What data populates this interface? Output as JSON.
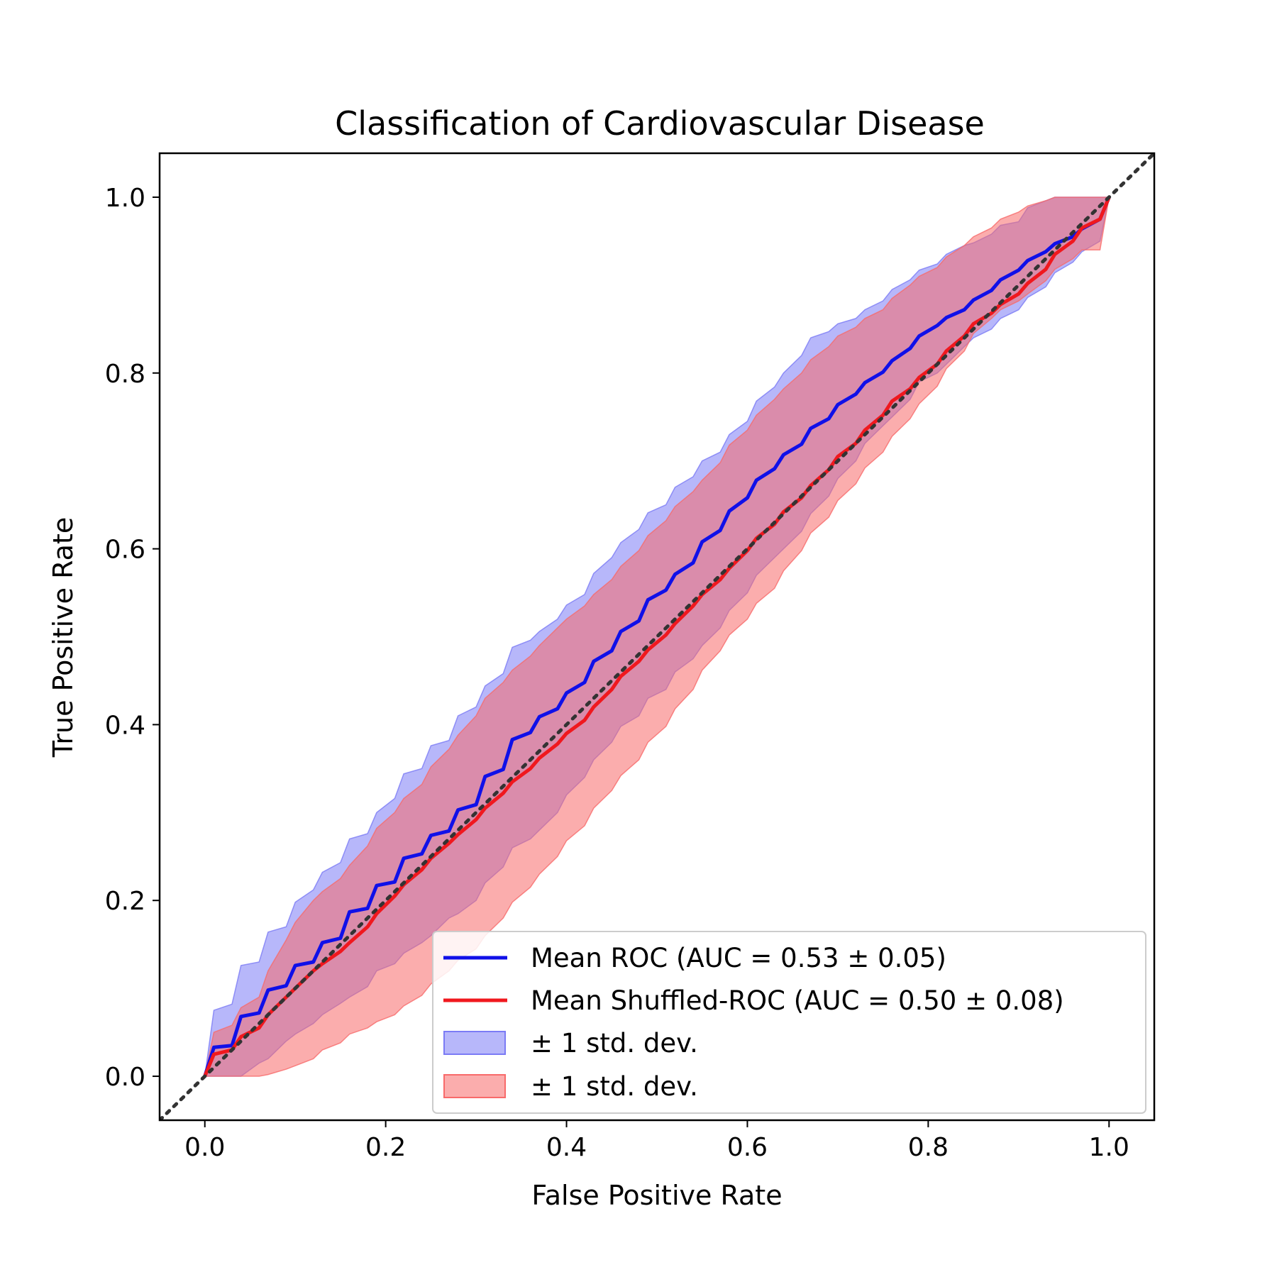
{
  "chart_data": {
    "type": "line",
    "title": "Classification of Cardiovascular Disease",
    "xlabel": "False Positive Rate",
    "ylabel": "True Positive Rate",
    "xlim": [
      -0.05,
      1.05
    ],
    "ylim": [
      -0.05,
      1.05
    ],
    "xticks": [
      "0.0",
      "0.2",
      "0.4",
      "0.6",
      "0.8",
      "1.0"
    ],
    "yticks": [
      "0.0",
      "0.2",
      "0.4",
      "0.6",
      "0.8",
      "1.0"
    ],
    "grid": false,
    "legend_position": "lower-right",
    "series": [
      {
        "name": "Mean ROC (AUC = 0.53 ± 0.05)",
        "color": "#1010e8",
        "x": [
          0.0,
          0.01,
          0.03,
          0.04,
          0.06,
          0.07,
          0.09,
          0.1,
          0.12,
          0.13,
          0.15,
          0.16,
          0.18,
          0.19,
          0.21,
          0.22,
          0.24,
          0.25,
          0.27,
          0.28,
          0.3,
          0.31,
          0.33,
          0.34,
          0.36,
          0.37,
          0.39,
          0.4,
          0.42,
          0.43,
          0.45,
          0.46,
          0.48,
          0.49,
          0.51,
          0.52,
          0.54,
          0.55,
          0.57,
          0.58,
          0.6,
          0.61,
          0.63,
          0.64,
          0.66,
          0.67,
          0.69,
          0.7,
          0.72,
          0.73,
          0.75,
          0.76,
          0.78,
          0.79,
          0.81,
          0.82,
          0.84,
          0.85,
          0.87,
          0.88,
          0.9,
          0.91,
          0.93,
          0.94,
          0.96,
          0.97,
          0.99,
          1.0
        ],
        "y": [
          0.0,
          0.033,
          0.035,
          0.068,
          0.072,
          0.098,
          0.103,
          0.126,
          0.13,
          0.152,
          0.157,
          0.187,
          0.191,
          0.217,
          0.221,
          0.248,
          0.253,
          0.274,
          0.279,
          0.303,
          0.309,
          0.341,
          0.349,
          0.383,
          0.391,
          0.409,
          0.418,
          0.436,
          0.448,
          0.472,
          0.484,
          0.506,
          0.518,
          0.542,
          0.553,
          0.571,
          0.584,
          0.608,
          0.621,
          0.643,
          0.658,
          0.678,
          0.691,
          0.707,
          0.719,
          0.737,
          0.748,
          0.764,
          0.776,
          0.789,
          0.801,
          0.814,
          0.828,
          0.842,
          0.854,
          0.863,
          0.872,
          0.883,
          0.894,
          0.906,
          0.917,
          0.928,
          0.938,
          0.947,
          0.955,
          0.964,
          0.975,
          1.0
        ],
        "band_label": "± 1 std. dev.",
        "band_color": "#7b7bf5",
        "y_upper": [
          0.0,
          0.075,
          0.082,
          0.126,
          0.13,
          0.164,
          0.17,
          0.198,
          0.212,
          0.232,
          0.243,
          0.27,
          0.276,
          0.3,
          0.316,
          0.344,
          0.35,
          0.376,
          0.382,
          0.41,
          0.42,
          0.444,
          0.458,
          0.488,
          0.496,
          0.506,
          0.52,
          0.536,
          0.548,
          0.572,
          0.59,
          0.607,
          0.622,
          0.641,
          0.65,
          0.67,
          0.682,
          0.7,
          0.71,
          0.73,
          0.745,
          0.768,
          0.784,
          0.8,
          0.82,
          0.84,
          0.847,
          0.856,
          0.862,
          0.872,
          0.882,
          0.895,
          0.906,
          0.917,
          0.924,
          0.935,
          0.945,
          0.948,
          0.958,
          0.968,
          0.972,
          0.988,
          0.996,
          1.0,
          1.0,
          1.0,
          1.0,
          1.0
        ],
        "y_lower": [
          0.0,
          0.0,
          0.0,
          0.0,
          0.015,
          0.02,
          0.04,
          0.048,
          0.06,
          0.07,
          0.083,
          0.09,
          0.102,
          0.12,
          0.128,
          0.14,
          0.152,
          0.16,
          0.18,
          0.185,
          0.2,
          0.22,
          0.238,
          0.26,
          0.27,
          0.28,
          0.3,
          0.32,
          0.34,
          0.36,
          0.38,
          0.398,
          0.41,
          0.43,
          0.44,
          0.46,
          0.475,
          0.49,
          0.51,
          0.53,
          0.55,
          0.57,
          0.59,
          0.6,
          0.62,
          0.64,
          0.66,
          0.68,
          0.7,
          0.72,
          0.74,
          0.75,
          0.77,
          0.79,
          0.8,
          0.81,
          0.83,
          0.84,
          0.85,
          0.862,
          0.872,
          0.886,
          0.898,
          0.914,
          0.926,
          0.938,
          0.95,
          1.0
        ]
      },
      {
        "name": "Mean Shuffled-ROC (AUC = 0.50 ± 0.08)",
        "color": "#f0181e",
        "x": [
          0.0,
          0.01,
          0.03,
          0.04,
          0.06,
          0.07,
          0.09,
          0.1,
          0.12,
          0.13,
          0.15,
          0.16,
          0.18,
          0.19,
          0.21,
          0.22,
          0.24,
          0.25,
          0.27,
          0.28,
          0.3,
          0.31,
          0.33,
          0.34,
          0.36,
          0.37,
          0.39,
          0.4,
          0.42,
          0.43,
          0.45,
          0.46,
          0.48,
          0.49,
          0.51,
          0.52,
          0.54,
          0.55,
          0.57,
          0.58,
          0.6,
          0.61,
          0.63,
          0.64,
          0.66,
          0.67,
          0.69,
          0.7,
          0.72,
          0.73,
          0.75,
          0.76,
          0.78,
          0.79,
          0.81,
          0.82,
          0.84,
          0.85,
          0.87,
          0.88,
          0.9,
          0.91,
          0.93,
          0.94,
          0.96,
          0.97,
          0.99,
          1.0
        ],
        "y": [
          0.0,
          0.025,
          0.03,
          0.045,
          0.055,
          0.07,
          0.09,
          0.1,
          0.12,
          0.128,
          0.142,
          0.152,
          0.17,
          0.185,
          0.205,
          0.218,
          0.235,
          0.248,
          0.265,
          0.275,
          0.292,
          0.305,
          0.322,
          0.335,
          0.35,
          0.362,
          0.378,
          0.39,
          0.405,
          0.42,
          0.44,
          0.455,
          0.472,
          0.485,
          0.502,
          0.515,
          0.535,
          0.548,
          0.565,
          0.578,
          0.598,
          0.612,
          0.628,
          0.642,
          0.658,
          0.672,
          0.69,
          0.705,
          0.72,
          0.735,
          0.752,
          0.768,
          0.782,
          0.795,
          0.81,
          0.825,
          0.842,
          0.856,
          0.868,
          0.878,
          0.89,
          0.902,
          0.918,
          0.935,
          0.95,
          0.965,
          0.975,
          1.0
        ],
        "band_label": "± 1 std. dev.",
        "band_color": "#f86a6a",
        "y_upper": [
          0.0,
          0.05,
          0.058,
          0.078,
          0.09,
          0.12,
          0.155,
          0.175,
          0.2,
          0.21,
          0.225,
          0.24,
          0.262,
          0.282,
          0.3,
          0.316,
          0.332,
          0.352,
          0.372,
          0.388,
          0.41,
          0.43,
          0.448,
          0.462,
          0.478,
          0.49,
          0.51,
          0.52,
          0.535,
          0.548,
          0.565,
          0.58,
          0.598,
          0.615,
          0.632,
          0.648,
          0.665,
          0.678,
          0.698,
          0.718,
          0.735,
          0.752,
          0.77,
          0.782,
          0.8,
          0.815,
          0.83,
          0.842,
          0.852,
          0.862,
          0.872,
          0.885,
          0.9,
          0.91,
          0.92,
          0.932,
          0.945,
          0.955,
          0.965,
          0.975,
          0.983,
          0.99,
          0.996,
          1.0,
          1.0,
          1.0,
          1.0,
          1.0
        ],
        "y_lower": [
          0.0,
          0.0,
          0.0,
          0.0,
          0.0,
          0.002,
          0.008,
          0.012,
          0.02,
          0.03,
          0.038,
          0.048,
          0.055,
          0.062,
          0.07,
          0.08,
          0.092,
          0.105,
          0.12,
          0.132,
          0.145,
          0.16,
          0.18,
          0.198,
          0.215,
          0.23,
          0.25,
          0.268,
          0.285,
          0.305,
          0.325,
          0.342,
          0.36,
          0.38,
          0.398,
          0.418,
          0.44,
          0.462,
          0.484,
          0.502,
          0.52,
          0.538,
          0.555,
          0.575,
          0.598,
          0.618,
          0.636,
          0.655,
          0.674,
          0.692,
          0.71,
          0.728,
          0.748,
          0.765,
          0.785,
          0.805,
          0.825,
          0.845,
          0.862,
          0.872,
          0.882,
          0.89,
          0.905,
          0.918,
          0.93,
          0.94,
          0.94,
          1.0
        ]
      }
    ],
    "reference_line": {
      "x": [
        -0.05,
        1.05
      ],
      "y": [
        -0.05,
        1.05
      ],
      "style": "dotted",
      "color": "#333333"
    }
  }
}
